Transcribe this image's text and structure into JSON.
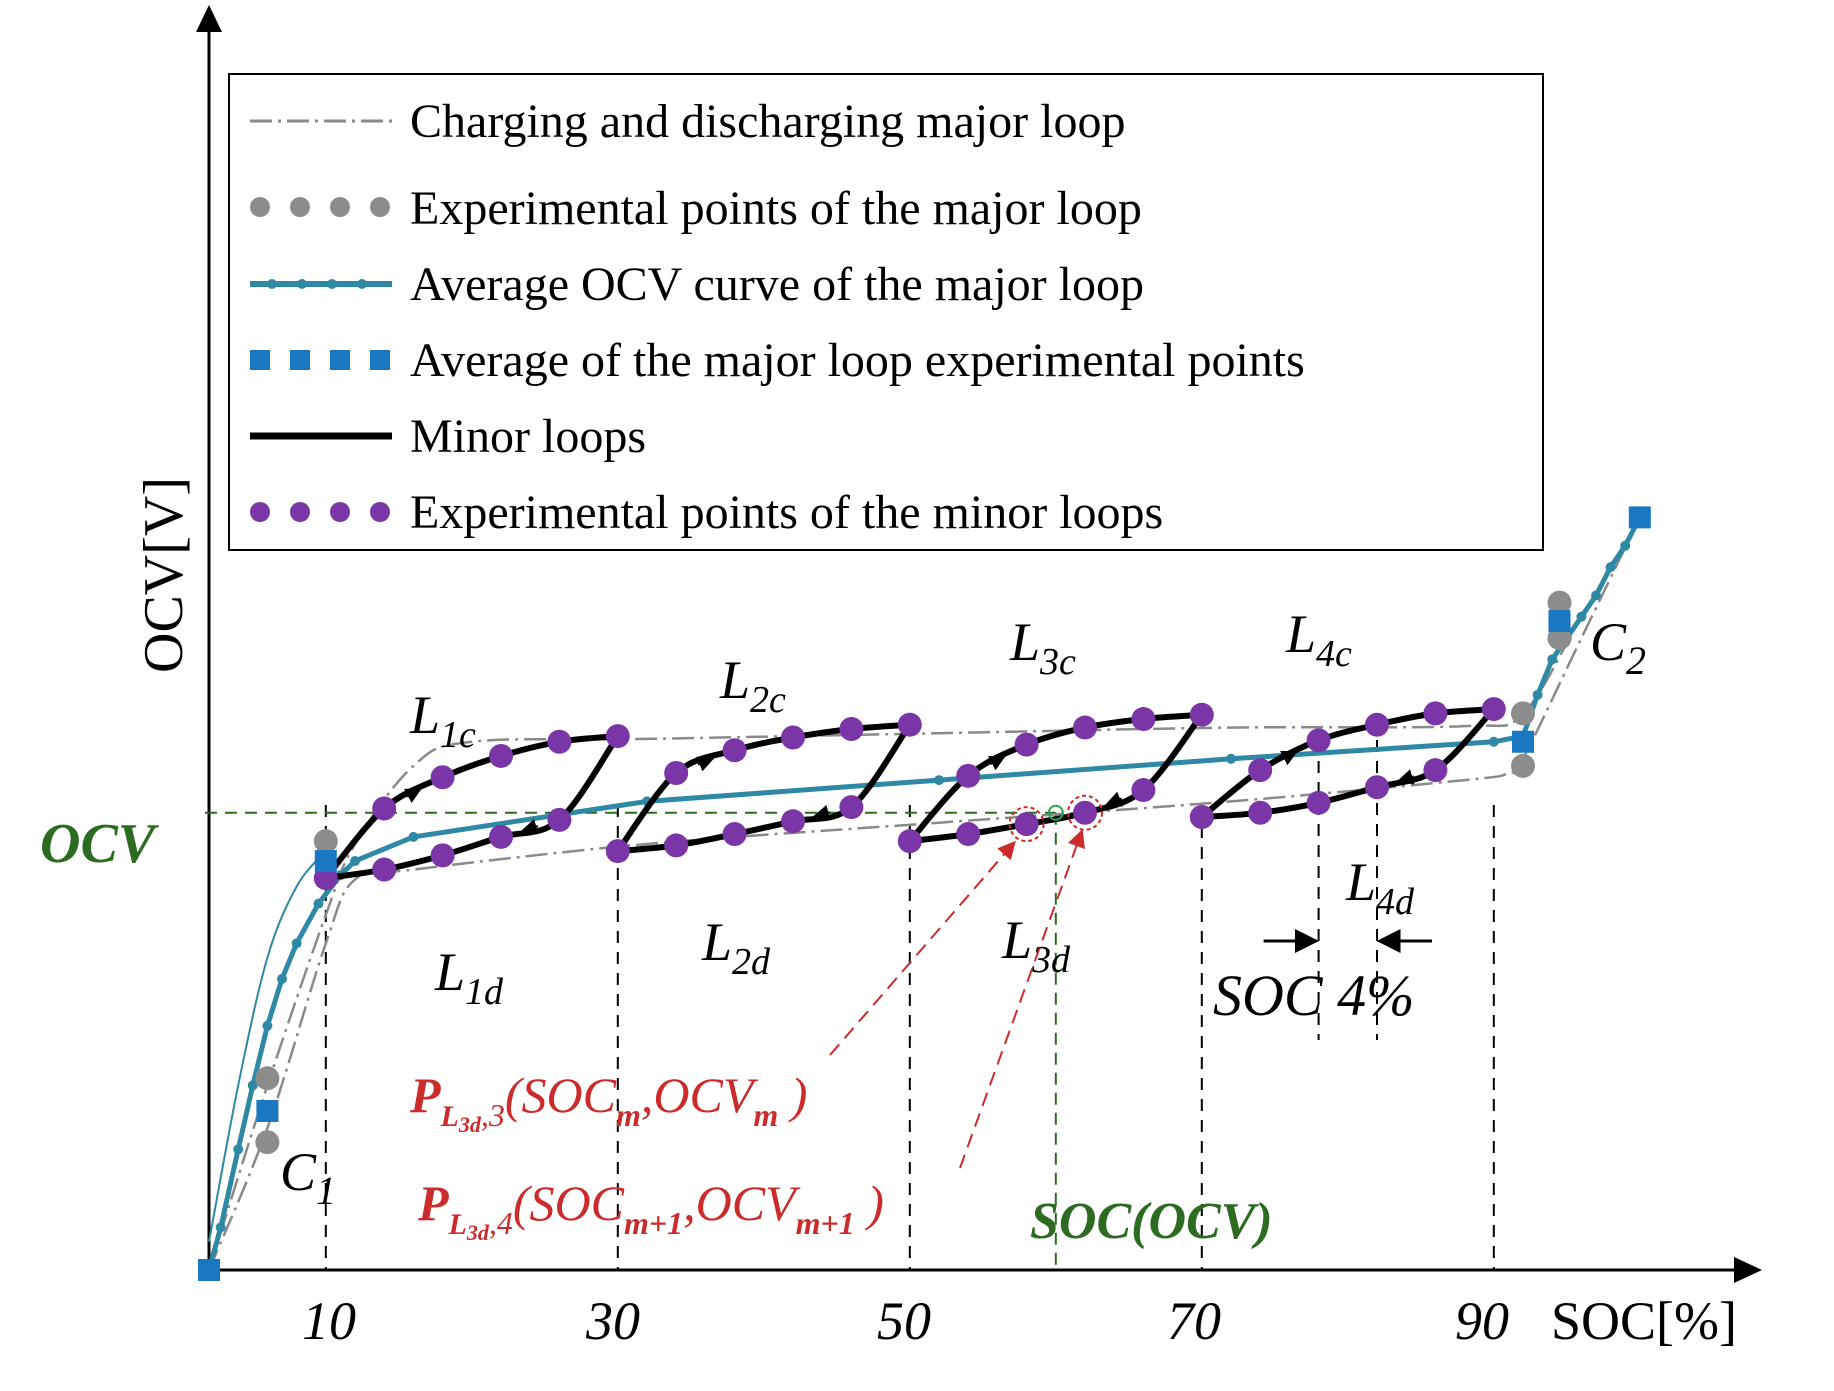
{
  "chart_data": {
    "type": "line",
    "xlabel": "SOC[%]",
    "ylabel": "OCV[V]",
    "x_ticks": [
      10,
      30,
      50,
      70,
      90
    ],
    "grid": false,
    "legend_position": "top-center",
    "colors": {
      "major": "#8a8a8a",
      "major_points": "#8c8c8c",
      "average": "#2f89a5",
      "average_points": "#1a78c2",
      "minor": "#000000",
      "minor_points": "#7a35a6",
      "annotation": "#cc2b2b",
      "reference": "#2e6b22"
    },
    "legend": [
      {
        "key": "major",
        "label": "Charging and discharging major loop"
      },
      {
        "key": "major_points",
        "label": "Experimental points of the major loop"
      },
      {
        "key": "average",
        "label": "Average OCV curve of the major loop"
      },
      {
        "key": "average_points",
        "label": "Average of the major loop experimental points"
      },
      {
        "key": "minor",
        "label": "Minor loops"
      },
      {
        "key": "minor_points",
        "label": "Experimental points of the minor loops"
      }
    ],
    "series": [
      {
        "key": "major_charge",
        "x": [
          0,
          4,
          8,
          10,
          14,
          18,
          30,
          50,
          70,
          86,
          90,
          94,
          98
        ],
        "y": [
          0,
          1.3,
          2.5,
          3.0,
          3.55,
          3.72,
          3.74,
          3.78,
          3.82,
          3.83,
          3.92,
          4.6,
          5.3
        ]
      },
      {
        "key": "major_discharge",
        "x": [
          0,
          4,
          8,
          10,
          14,
          30,
          50,
          70,
          86,
          89,
          90,
          94,
          98
        ],
        "y": [
          0,
          1.0,
          2.3,
          2.75,
          2.82,
          3.0,
          3.15,
          3.3,
          3.45,
          3.5,
          3.6,
          4.45,
          5.3
        ]
      },
      {
        "key": "average",
        "x": [
          0,
          0.8,
          2,
          3,
          4,
          5,
          6,
          7.5,
          9,
          10,
          14,
          30,
          50,
          70,
          88,
          90,
          91,
          92,
          93,
          94,
          95,
          96,
          97,
          98
        ],
        "y": [
          0,
          0.3,
          0.85,
          1.3,
          1.72,
          2.05,
          2.3,
          2.58,
          2.78,
          2.88,
          3.05,
          3.3,
          3.45,
          3.6,
          3.72,
          3.76,
          4.05,
          4.3,
          4.45,
          4.6,
          4.75,
          4.95,
          5.1,
          5.3
        ]
      },
      {
        "key": "major_points",
        "x": [
          4,
          4,
          8,
          90,
          90,
          92.5,
          92.5
        ],
        "y": [
          1.35,
          0.9,
          3.02,
          3.92,
          3.55,
          4.7,
          4.45
        ]
      },
      {
        "key": "average_points",
        "x": [
          0,
          4,
          8,
          90,
          92.5,
          98
        ],
        "y": [
          0,
          1.12,
          2.88,
          3.72,
          4.57,
          5.3
        ]
      }
    ],
    "minor_loops": [
      {
        "name": "L1",
        "charge_label": "L",
        "charge_sub": "1c",
        "discharge_label": "L",
        "discharge_sub": "1d",
        "x_start": 8,
        "x_end": 28,
        "charge_x": [
          8,
          12,
          16,
          20,
          24,
          28
        ],
        "charge_y": [
          2.76,
          3.25,
          3.47,
          3.62,
          3.72,
          3.76
        ],
        "discharge_x": [
          8,
          12,
          16,
          20,
          24,
          28
        ],
        "discharge_y": [
          2.76,
          2.82,
          2.92,
          3.05,
          3.17,
          3.76
        ]
      },
      {
        "name": "L2",
        "charge_label": "L",
        "charge_sub": "2c",
        "discharge_label": "L",
        "discharge_sub": "2d",
        "x_start": 28,
        "x_end": 48,
        "charge_x": [
          28,
          32,
          36,
          40,
          44,
          48
        ],
        "charge_y": [
          2.95,
          3.5,
          3.66,
          3.75,
          3.81,
          3.84
        ],
        "discharge_x": [
          28,
          32,
          36,
          40,
          44,
          48
        ],
        "discharge_y": [
          2.95,
          2.99,
          3.07,
          3.16,
          3.26,
          3.84
        ]
      },
      {
        "name": "L3",
        "charge_label": "L",
        "charge_sub": "3c",
        "discharge_label": "L",
        "discharge_sub": "3d",
        "x_start": 48,
        "x_end": 68,
        "charge_x": [
          48,
          52,
          56,
          60,
          64,
          68
        ],
        "charge_y": [
          3.02,
          3.48,
          3.7,
          3.82,
          3.88,
          3.91
        ],
        "discharge_x": [
          48,
          52,
          56,
          60,
          64,
          68
        ],
        "discharge_y": [
          3.02,
          3.07,
          3.14,
          3.22,
          3.38,
          3.91
        ]
      },
      {
        "name": "L4",
        "charge_label": "L",
        "charge_sub": "4c",
        "discharge_label": "L",
        "discharge_sub": "4d",
        "x_start": 68,
        "x_end": 88,
        "charge_x": [
          68,
          72,
          76,
          80,
          84,
          88
        ],
        "charge_y": [
          3.19,
          3.52,
          3.73,
          3.84,
          3.92,
          3.95
        ],
        "discharge_x": [
          68,
          72,
          76,
          80,
          84,
          88
        ],
        "discharge_y": [
          3.19,
          3.22,
          3.29,
          3.4,
          3.52,
          3.95
        ]
      }
    ],
    "annotations": {
      "ocv_label": "OCV",
      "soc_ocv_label": "SOC(OCV)",
      "c1": {
        "main": "C",
        "sub": "1"
      },
      "c2": {
        "main": "C",
        "sub": "2"
      },
      "step_label": "SOC 4%",
      "p3": {
        "P": "P",
        "sub_L": "L",
        "sub_3d": "3d",
        "sub_idx": ",3",
        "open": "(SOC",
        "m": "m",
        "comma": ",OCV",
        "m2": "m",
        "close": " )"
      },
      "p4": {
        "P": "P",
        "sub_L": "L",
        "sub_3d": "3d",
        "sub_idx": ",4",
        "open": "(SOC",
        "m": "m+1",
        "comma": ",OCV",
        "m2": "m+1",
        "close": " )"
      }
    }
  }
}
